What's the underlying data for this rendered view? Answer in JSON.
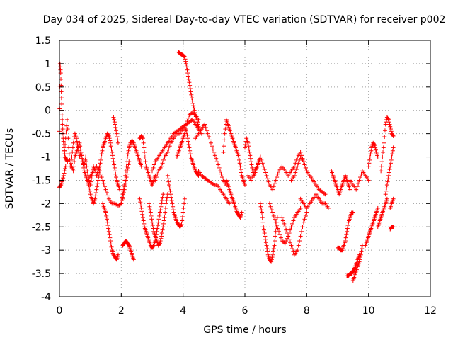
{
  "chart_data": {
    "type": "scatter",
    "title": "Day 034 of 2025, Sidereal Day-to-day VTEC variation (SDTVAR) for receiver p002",
    "xlabel": "GPS time / hours",
    "ylabel": "SDTVAR / TECUs",
    "xlim": [
      0,
      12
    ],
    "ylim": [
      -4,
      1.5
    ],
    "xticks": [
      0,
      2,
      4,
      6,
      8,
      10,
      12
    ],
    "xtick_labels": [
      "0",
      "2",
      "4",
      "6",
      "8",
      "10",
      "12"
    ],
    "yticks": [
      -4,
      -3.5,
      -3,
      -2.5,
      -2,
      -1.5,
      -1,
      -0.5,
      0,
      0.5,
      1,
      1.5
    ],
    "ytick_labels": [
      "-4",
      "-3.5",
      "-3",
      "-2.5",
      "-2",
      "-1.5",
      "-1",
      "-0.5",
      "0",
      "0.5",
      "1",
      "1.5"
    ],
    "grid": true,
    "marker": "+",
    "color": "#ff0000",
    "series": [
      {
        "name": "s1",
        "x": [
          0.0,
          0.02,
          0.04,
          0.06,
          0.08,
          0.1,
          0.12,
          0.15,
          0.18,
          0.22,
          0.26
        ],
        "y": [
          -0.45,
          1.0,
          0.8,
          0.4,
          0.0,
          -0.3,
          -0.6,
          -0.8,
          -1.0,
          -1.05,
          -1.1
        ]
      },
      {
        "name": "s2",
        "x": [
          0.0,
          0.05,
          0.1,
          0.15,
          0.2
        ],
        "y": [
          -1.65,
          -1.6,
          -1.5,
          -1.35,
          -1.2
        ]
      },
      {
        "name": "s3",
        "x": [
          0.15,
          0.2,
          0.25,
          0.3,
          0.35,
          0.4,
          0.45,
          0.5,
          0.55,
          0.6,
          0.65,
          0.7,
          0.75,
          0.8,
          0.85,
          0.9,
          0.95,
          1.0,
          1.05,
          1.1,
          1.15
        ],
        "y": [
          -1.0,
          -0.6,
          -0.2,
          -0.8,
          -1.2,
          -1.0,
          -0.7,
          -0.5,
          -0.6,
          -0.8,
          -1.0,
          -0.9,
          -1.1,
          -1.2,
          -1.0,
          -1.3,
          -1.5,
          -1.6,
          -1.4,
          -1.2,
          -1.3
        ]
      },
      {
        "name": "s4",
        "x": [
          0.4,
          0.45,
          0.5,
          0.55,
          0.6,
          0.65,
          0.7,
          0.75,
          0.8,
          0.85,
          0.9,
          0.95,
          1.0,
          1.05,
          1.1,
          1.15,
          1.2,
          1.25,
          1.3
        ],
        "y": [
          -1.2,
          -1.3,
          -1.0,
          -0.9,
          -0.8,
          -0.7,
          -0.9,
          -1.1,
          -1.3,
          -1.4,
          -1.5,
          -1.6,
          -1.8,
          -1.9,
          -2.0,
          -1.9,
          -1.7,
          -1.5,
          -1.3
        ]
      },
      {
        "name": "s5",
        "x": [
          0.9,
          1.0,
          1.1,
          1.2,
          1.3,
          1.4,
          1.5,
          1.6,
          1.7,
          1.8,
          1.9,
          2.0
        ],
        "y": [
          -1.5,
          -1.4,
          -1.3,
          -1.2,
          -1.3,
          -1.5,
          -1.7,
          -1.9,
          -2.0,
          -2.0,
          -2.05,
          -2.0
        ]
      },
      {
        "name": "s6",
        "x": [
          1.2,
          1.25,
          1.3,
          1.35,
          1.4,
          1.45,
          1.5,
          1.55,
          1.6,
          1.65,
          1.7,
          1.75,
          1.8,
          1.85,
          1.9,
          1.95
        ],
        "y": [
          -1.4,
          -1.3,
          -1.2,
          -1.0,
          -0.8,
          -0.7,
          -0.6,
          -0.5,
          -0.55,
          -0.7,
          -0.9,
          -1.1,
          -1.3,
          -1.5,
          -1.6,
          -1.7
        ]
      },
      {
        "name": "s7",
        "x": [
          1.4,
          1.45,
          1.5,
          1.55,
          1.6,
          1.65,
          1.7,
          1.75,
          1.8,
          1.85,
          1.9
        ],
        "y": [
          -2.0,
          -2.1,
          -2.2,
          -2.4,
          -2.6,
          -2.8,
          -3.0,
          -3.1,
          -3.15,
          -3.2,
          -3.1
        ]
      },
      {
        "name": "s8",
        "x": [
          1.75,
          1.8,
          1.85,
          1.9
        ],
        "y": [
          -0.15,
          -0.3,
          -0.5,
          -0.7
        ]
      },
      {
        "name": "s9",
        "x": [
          2.05,
          2.1,
          2.15,
          2.2,
          2.25,
          2.3,
          2.35,
          2.4
        ],
        "y": [
          -2.9,
          -2.85,
          -2.8,
          -2.85,
          -2.9,
          -3.0,
          -3.1,
          -3.2
        ]
      },
      {
        "name": "s10",
        "x": [
          2.0,
          2.05,
          2.1,
          2.15,
          2.2,
          2.25,
          2.3,
          2.35,
          2.4,
          2.45,
          2.5,
          2.55,
          2.6,
          2.65
        ],
        "y": [
          -2.0,
          -1.8,
          -1.6,
          -1.3,
          -1.0,
          -0.8,
          -0.7,
          -0.65,
          -0.7,
          -0.8,
          -0.9,
          -1.0,
          -1.1,
          -1.2
        ]
      },
      {
        "name": "s11",
        "x": [
          2.05,
          2.1,
          2.15,
          2.2,
          2.25
        ],
        "y": [
          -1.9,
          -1.7,
          -1.5,
          -1.3,
          -1.1
        ]
      },
      {
        "name": "s12",
        "x": [
          2.6,
          2.65,
          2.7,
          2.75,
          2.8,
          2.85,
          2.9,
          2.95,
          3.0,
          3.05,
          3.1
        ],
        "y": [
          -0.6,
          -0.55,
          -0.6,
          -0.9,
          -1.2,
          -1.3,
          -1.4,
          -1.5,
          -1.6,
          -1.5,
          -1.4
        ]
      },
      {
        "name": "s13",
        "x": [
          2.6,
          2.65,
          2.7,
          2.75,
          2.8,
          2.85,
          2.9,
          2.95,
          3.0,
          3.05,
          3.1,
          3.15,
          3.2,
          3.25,
          3.3,
          3.35
        ],
        "y": [
          -1.9,
          -2.1,
          -2.3,
          -2.5,
          -2.6,
          -2.7,
          -2.8,
          -2.9,
          -2.95,
          -2.9,
          -2.8,
          -2.6,
          -2.4,
          -2.2,
          -2.0,
          -1.8
        ]
      },
      {
        "name": "s14",
        "x": [
          2.9,
          2.95,
          3.0,
          3.05,
          3.1,
          3.15,
          3.2,
          3.25,
          3.3,
          3.35,
          3.4,
          3.45,
          3.5
        ],
        "y": [
          -2.0,
          -2.2,
          -2.4,
          -2.6,
          -2.7,
          -2.8,
          -2.9,
          -2.85,
          -2.7,
          -2.5,
          -2.3,
          -2.0,
          -1.8
        ]
      },
      {
        "name": "s15",
        "x": [
          3.0,
          3.1,
          3.2,
          3.3,
          3.4,
          3.5,
          3.6,
          3.7,
          3.8,
          3.9,
          4.0,
          4.1,
          4.2,
          4.3,
          4.4,
          4.5,
          4.6
        ],
        "y": [
          -1.3,
          -1.1,
          -1.0,
          -0.9,
          -0.8,
          -0.7,
          -0.6,
          -0.5,
          -0.45,
          -0.4,
          -0.35,
          -0.3,
          -0.25,
          -0.2,
          -0.3,
          -0.4,
          -0.5
        ]
      },
      {
        "name": "s16",
        "x": [
          3.1,
          3.2,
          3.3,
          3.4,
          3.5,
          3.6,
          3.7,
          3.8,
          3.9,
          4.0,
          4.1,
          4.2,
          4.3,
          4.4,
          4.5
        ],
        "y": [
          -1.5,
          -1.3,
          -1.2,
          -1.0,
          -0.9,
          -0.7,
          -0.6,
          -0.5,
          -0.5,
          -0.4,
          -0.3,
          -0.1,
          -0.05,
          -0.1,
          -0.2
        ]
      },
      {
        "name": "s17",
        "x": [
          3.5,
          3.55,
          3.6,
          3.65,
          3.7,
          3.75,
          3.8,
          3.85,
          3.9,
          3.95,
          4.0,
          4.05
        ],
        "y": [
          -1.4,
          -1.6,
          -1.8,
          -2.0,
          -2.2,
          -2.3,
          -2.4,
          -2.45,
          -2.5,
          -2.45,
          -2.2,
          -1.9
        ]
      },
      {
        "name": "s18",
        "x": [
          3.85,
          3.9,
          3.95,
          4.0,
          4.05,
          4.1,
          4.15,
          4.2,
          4.25,
          4.3,
          4.35,
          4.4,
          4.45,
          4.5
        ],
        "y": [
          1.25,
          1.22,
          1.2,
          1.18,
          1.15,
          1.0,
          0.8,
          0.6,
          0.4,
          0.2,
          0.05,
          -0.1,
          -0.2,
          -0.35
        ]
      },
      {
        "name": "s19",
        "x": [
          3.8,
          3.85,
          3.9,
          3.95,
          4.0,
          4.05,
          4.1,
          4.15,
          4.2,
          4.25,
          4.3,
          4.35,
          4.4,
          4.45,
          4.5
        ],
        "y": [
          -1.0,
          -0.9,
          -0.8,
          -0.7,
          -0.6,
          -0.5,
          -0.4,
          -0.6,
          -0.8,
          -1.0,
          -1.1,
          -1.2,
          -1.3,
          -1.35,
          -1.4
        ]
      },
      {
        "name": "s20",
        "x": [
          4.4,
          4.5,
          4.6,
          4.7,
          4.8,
          4.9,
          5.0,
          5.1,
          5.2,
          5.3,
          5.4
        ],
        "y": [
          -0.6,
          -0.5,
          -0.4,
          -0.3,
          -0.5,
          -0.7,
          -0.9,
          -1.1,
          -1.3,
          -1.5,
          -1.6
        ]
      },
      {
        "name": "s21",
        "x": [
          4.5,
          4.6,
          4.7,
          4.8,
          4.9,
          5.0,
          5.1,
          5.2,
          5.3,
          5.4,
          5.5
        ],
        "y": [
          -1.3,
          -1.4,
          -1.45,
          -1.5,
          -1.55,
          -1.6,
          -1.6,
          -1.7,
          -1.8,
          -1.9,
          -2.0
        ]
      },
      {
        "name": "s22",
        "x": [
          5.3,
          5.35,
          5.4,
          5.45,
          5.5,
          5.55,
          5.6,
          5.65,
          5.7,
          5.75,
          5.8,
          5.85,
          5.9,
          5.95,
          6.0
        ],
        "y": [
          -0.9,
          -0.5,
          -0.2,
          -0.3,
          -0.4,
          -0.5,
          -0.6,
          -0.7,
          -0.8,
          -0.9,
          -1.0,
          -1.2,
          -1.4,
          -1.5,
          -1.6
        ]
      },
      {
        "name": "s23",
        "x": [
          5.4,
          5.45,
          5.5,
          5.55,
          5.6,
          5.65,
          5.7,
          5.75,
          5.8,
          5.85,
          5.9
        ],
        "y": [
          -1.5,
          -1.6,
          -1.7,
          -1.8,
          -1.9,
          -2.0,
          -2.1,
          -2.2,
          -2.25,
          -2.3,
          -2.2
        ]
      },
      {
        "name": "s24",
        "x": [
          6.0,
          6.05,
          6.1,
          6.15,
          6.2,
          6.25,
          6.3,
          6.35,
          6.4,
          6.45,
          6.5
        ],
        "y": [
          -0.8,
          -0.6,
          -0.7,
          -0.9,
          -1.1,
          -1.3,
          -1.4,
          -1.3,
          -1.2,
          -1.1,
          -1.0
        ]
      },
      {
        "name": "s25",
        "x": [
          6.1,
          6.2,
          6.3,
          6.4,
          6.5,
          6.6,
          6.7,
          6.8,
          6.9,
          7.0,
          7.1,
          7.2,
          7.3,
          7.4,
          7.5,
          7.6,
          7.7,
          7.8,
          7.9,
          8.0
        ],
        "y": [
          -1.4,
          -1.5,
          -1.3,
          -1.2,
          -1.0,
          -1.2,
          -1.4,
          -1.6,
          -1.7,
          -1.5,
          -1.3,
          -1.2,
          -1.3,
          -1.4,
          -1.3,
          -1.2,
          -1.0,
          -0.9,
          -1.1,
          -1.3
        ]
      },
      {
        "name": "s26",
        "x": [
          6.5,
          6.55,
          6.6,
          6.65,
          6.7,
          6.75,
          6.8,
          6.85,
          6.9,
          6.95,
          7.0,
          7.05
        ],
        "y": [
          -2.0,
          -2.2,
          -2.5,
          -2.7,
          -2.9,
          -3.1,
          -3.2,
          -3.25,
          -3.1,
          -2.9,
          -2.6,
          -2.3
        ]
      },
      {
        "name": "s27",
        "x": [
          6.8,
          6.9,
          7.0,
          7.1,
          7.2,
          7.3,
          7.4,
          7.5,
          7.6,
          7.7,
          7.8
        ],
        "y": [
          -2.0,
          -2.2,
          -2.4,
          -2.6,
          -2.8,
          -2.85,
          -2.7,
          -2.5,
          -2.3,
          -2.2,
          -2.1
        ]
      },
      {
        "name": "s28",
        "x": [
          7.2,
          7.3,
          7.4,
          7.5,
          7.6,
          7.7,
          7.8,
          7.9,
          8.0
        ],
        "y": [
          -2.3,
          -2.5,
          -2.7,
          -2.9,
          -3.1,
          -3.0,
          -2.7,
          -2.4,
          -2.2
        ]
      },
      {
        "name": "s29",
        "x": [
          7.5,
          7.6,
          7.7,
          7.8,
          7.9,
          8.0,
          8.1,
          8.2,
          8.3,
          8.4,
          8.5,
          8.6
        ],
        "y": [
          -1.5,
          -1.4,
          -1.2,
          -1.0,
          -1.1,
          -1.3,
          -1.4,
          -1.5,
          -1.6,
          -1.7,
          -1.75,
          -1.8
        ]
      },
      {
        "name": "s30",
        "x": [
          7.8,
          7.9,
          8.0,
          8.1,
          8.2,
          8.3,
          8.4,
          8.5,
          8.6,
          8.7
        ],
        "y": [
          -1.9,
          -2.0,
          -2.1,
          -2.0,
          -1.9,
          -1.8,
          -1.9,
          -2.0,
          -2.0,
          -2.1
        ]
      },
      {
        "name": "s31",
        "x": [
          8.8,
          8.85,
          8.9,
          8.95,
          9.0,
          9.05,
          9.1,
          9.15,
          9.2,
          9.25,
          9.3,
          9.35,
          9.4
        ],
        "y": [
          -1.3,
          -1.4,
          -1.5,
          -1.6,
          -1.7,
          -1.8,
          -1.7,
          -1.6,
          -1.5,
          -1.4,
          -1.5,
          -1.6,
          -1.7
        ]
      },
      {
        "name": "s32",
        "x": [
          9.0,
          9.05,
          9.1,
          9.15,
          9.2,
          9.25,
          9.3,
          9.35,
          9.4,
          9.45,
          9.5
        ],
        "y": [
          -2.95,
          -2.95,
          -3.0,
          -3.0,
          -2.9,
          -2.8,
          -2.6,
          -2.4,
          -2.3,
          -2.2,
          -2.2
        ]
      },
      {
        "name": "s33",
        "x": [
          9.3,
          9.35,
          9.4,
          9.45,
          9.5,
          9.55,
          9.6,
          9.65,
          9.7
        ],
        "y": [
          -3.55,
          -3.55,
          -3.5,
          -3.5,
          -3.45,
          -3.4,
          -3.3,
          -3.2,
          -3.1
        ]
      },
      {
        "name": "s34",
        "x": [
          9.5,
          9.55,
          9.6,
          9.65,
          9.7,
          9.75,
          9.8
        ],
        "y": [
          -3.65,
          -3.55,
          -3.45,
          -3.35,
          -3.25,
          -3.1,
          -2.9
        ]
      },
      {
        "name": "s35",
        "x": [
          9.4,
          9.5,
          9.6,
          9.7,
          9.8,
          9.9,
          10.0
        ],
        "y": [
          -1.5,
          -1.6,
          -1.7,
          -1.5,
          -1.3,
          -1.4,
          -1.5
        ]
      },
      {
        "name": "s36",
        "x": [
          9.9,
          9.95,
          10.0,
          10.05,
          10.1,
          10.15,
          10.2,
          10.25,
          10.3
        ],
        "y": [
          -2.9,
          -2.8,
          -2.7,
          -2.6,
          -2.5,
          -2.4,
          -2.3,
          -2.2,
          -2.1
        ]
      },
      {
        "name": "s37",
        "x": [
          10.0,
          10.05,
          10.1,
          10.15,
          10.2,
          10.25,
          10.3
        ],
        "y": [
          -1.2,
          -1.0,
          -0.8,
          -0.7,
          -0.75,
          -0.9,
          -1.0
        ]
      },
      {
        "name": "s38",
        "x": [
          10.3,
          10.35,
          10.4,
          10.45,
          10.5,
          10.55,
          10.6
        ],
        "y": [
          -2.5,
          -2.4,
          -2.3,
          -2.2,
          -2.1,
          -2.0,
          -1.9
        ]
      },
      {
        "name": "s39",
        "x": [
          10.4,
          10.45,
          10.5,
          10.55,
          10.6,
          10.65,
          10.7,
          10.75,
          10.8
        ],
        "y": [
          -1.3,
          -1.0,
          -0.7,
          -0.3,
          -0.15,
          -0.2,
          -0.35,
          -0.5,
          -0.55
        ]
      },
      {
        "name": "s40",
        "x": [
          10.55,
          10.6,
          10.65,
          10.7,
          10.75,
          10.8
        ],
        "y": [
          -1.8,
          -1.6,
          -1.4,
          -1.2,
          -1.0,
          -0.8
        ]
      },
      {
        "name": "s41",
        "x": [
          10.7,
          10.75,
          10.8
        ],
        "y": [
          -2.55,
          -2.5,
          -2.5
        ]
      },
      {
        "name": "s42",
        "x": [
          10.7,
          10.75,
          10.8
        ],
        "y": [
          -2.1,
          -2.0,
          -1.9
        ]
      }
    ]
  }
}
